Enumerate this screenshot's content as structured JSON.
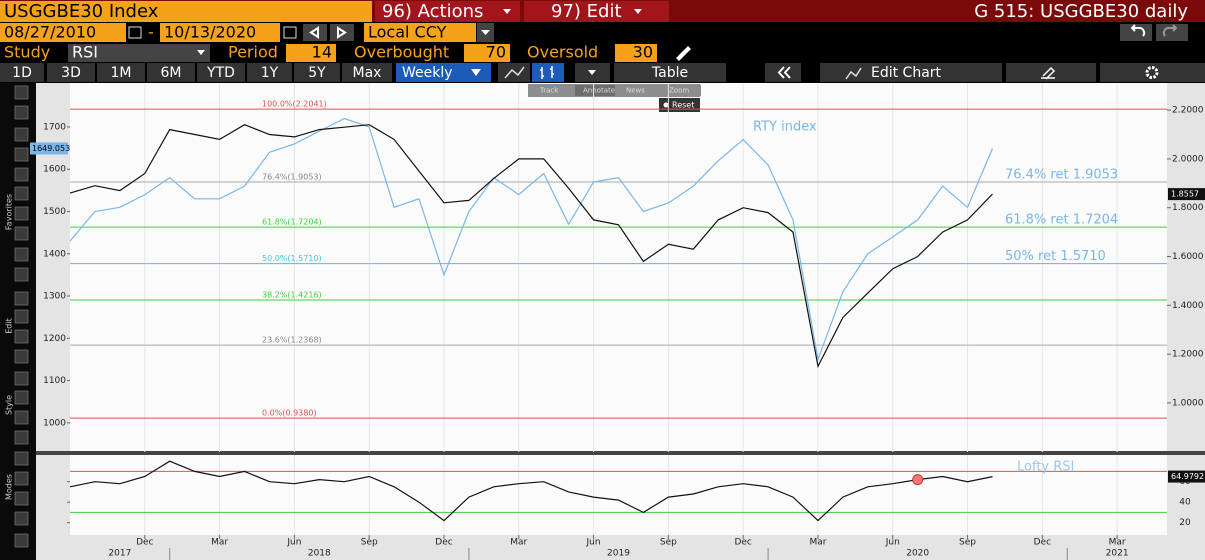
{
  "header": {
    "ticker": "USGGBE30 Index",
    "actions": "96) Actions",
    "edit": "97) Edit",
    "title": "G 515: USGGBE30 daily"
  },
  "range": {
    "start": "08/27/2010",
    "sep": "-",
    "end": "10/13/2020",
    "currency": "Local CCY"
  },
  "study": {
    "label": "Study",
    "name": "RSI",
    "period_label": "Period",
    "period": 14,
    "overbought_label": "Overbought",
    "overbought": 70,
    "oversold_label": "Oversold",
    "oversold": 30
  },
  "periods": [
    "1D",
    "3D",
    "1M",
    "6M",
    "YTD",
    "1Y",
    "5Y",
    "Max"
  ],
  "frequency": "Weekly",
  "table": "Table",
  "edit_chart": "Edit Chart",
  "chart_tools": [
    "Track",
    "Annotate",
    "News",
    "Zoom"
  ],
  "reset": "Reset",
  "sidebar": [
    "Favorites",
    "Edit",
    "Style",
    "Modes"
  ],
  "chart_data": [
    {
      "type": "line",
      "x": [
        "2017-09",
        "2017-10",
        "2017-11",
        "2017-12",
        "2018-01",
        "2018-02",
        "2018-03",
        "2018-04",
        "2018-05",
        "2018-06",
        "2018-07",
        "2018-08",
        "2018-09",
        "2018-10",
        "2018-11",
        "2018-12",
        "2019-01",
        "2019-02",
        "2019-03",
        "2019-04",
        "2019-05",
        "2019-06",
        "2019-07",
        "2019-08",
        "2019-09",
        "2019-10",
        "2019-11",
        "2019-12",
        "2020-01",
        "2020-02",
        "2020-03",
        "2020-04",
        "2020-05",
        "2020-06",
        "2020-07",
        "2020-08",
        "2020-09",
        "2020-10"
      ],
      "xlim": [
        "2017-09",
        "2021-05"
      ],
      "ylim": [
        931,
        1804
      ],
      "yticks": [
        1000,
        1100,
        1200,
        1300,
        1400,
        1500,
        1600,
        1700
      ],
      "y2lim": [
        0.799,
        2.311
      ],
      "y2ticks": [
        {
          "value": 1.0,
          "label": "1.0000"
        },
        {
          "value": 1.2,
          "label": "1.2000"
        },
        {
          "value": 1.4,
          "label": "1.4000"
        },
        {
          "value": 1.6,
          "label": "1.6000"
        },
        {
          "value": 1.8,
          "label": "1.8000"
        },
        {
          "value": 2.0,
          "label": "2.0000"
        },
        {
          "value": 2.2,
          "label": "2.2000"
        }
      ],
      "series": [
        {
          "name": "RTY index",
          "color": "#7ab6ea",
          "axis": "y",
          "values": [
            1430,
            1500,
            1510,
            1540,
            1580,
            1530,
            1530,
            1560,
            1640,
            1660,
            1690,
            1720,
            1700,
            1510,
            1530,
            1350,
            1500,
            1580,
            1540,
            1590,
            1470,
            1570,
            1580,
            1500,
            1520,
            1560,
            1620,
            1670,
            1610,
            1480,
            1150,
            1310,
            1400,
            1440,
            1480,
            1560,
            1510,
            1649.053
          ]
        },
        {
          "color": "#111111",
          "axis": "y2",
          "values": [
            1.86,
            1.89,
            1.87,
            1.94,
            2.12,
            2.1,
            2.08,
            2.14,
            2.1,
            2.09,
            2.12,
            2.13,
            2.14,
            2.08,
            1.95,
            1.82,
            1.83,
            1.92,
            2.0,
            2.0,
            1.88,
            1.75,
            1.73,
            1.58,
            1.65,
            1.63,
            1.75,
            1.8,
            1.78,
            1.7,
            1.15,
            1.35,
            1.45,
            1.55,
            1.6,
            1.7,
            1.75,
            1.8557
          ]
        }
      ],
      "fib_levels": [
        {
          "value": 2.2041,
          "label": "100.0%(2.2041)",
          "color": "#e05050"
        },
        {
          "value": 1.9053,
          "label": "76.4%(1.9053)",
          "color": "#aaaaaa"
        },
        {
          "value": 1.7204,
          "label": "61.8%(1.7204)",
          "color": "#3cd13c"
        },
        {
          "value": 1.571,
          "label": "50.0%(1.5710)",
          "color": "#3cc8e0"
        },
        {
          "value": 1.4216,
          "label": "38.2%(1.4216)",
          "color": "#3cd13c"
        },
        {
          "value": 1.2368,
          "label": "23.6%(1.2368)",
          "color": "#aaaaaa"
        },
        {
          "value": 0.938,
          "label": "0.0%(0.9380)",
          "color": "#e05050"
        }
      ],
      "annotations": [
        {
          "text": "76.4% ret 1.9053",
          "value": 1.9053
        },
        {
          "text": "61.8% ret 1.7204",
          "value": 1.7204
        },
        {
          "text": "50% ret 1.5710",
          "value": 1.571
        }
      ]
    },
    {
      "type": "line",
      "x": [
        "2017-09",
        "2017-10",
        "2017-11",
        "2017-12",
        "2018-01",
        "2018-02",
        "2018-03",
        "2018-04",
        "2018-05",
        "2018-06",
        "2018-07",
        "2018-08",
        "2018-09",
        "2018-10",
        "2018-11",
        "2018-12",
        "2019-01",
        "2019-02",
        "2019-03",
        "2019-04",
        "2019-05",
        "2019-06",
        "2019-07",
        "2019-08",
        "2019-09",
        "2019-10",
        "2019-11",
        "2019-12",
        "2020-01",
        "2020-02",
        "2020-03",
        "2020-04",
        "2020-05",
        "2020-06",
        "2020-07",
        "2020-08",
        "2020-09",
        "2020-10"
      ],
      "xlim": [
        "2017-09",
        "2021-05"
      ],
      "ylim": [
        8,
        86
      ],
      "yticks": [
        20,
        40,
        60
      ],
      "series": [
        {
          "name": "Lofty RSI",
          "color": "#111111",
          "values": [
            55,
            60,
            58,
            65,
            80,
            70,
            65,
            70,
            60,
            58,
            62,
            60,
            65,
            55,
            40,
            22,
            45,
            55,
            58,
            60,
            50,
            45,
            42,
            30,
            45,
            48,
            55,
            58,
            55,
            45,
            22,
            45,
            55,
            58,
            62,
            65,
            60,
            64.9792
          ]
        }
      ],
      "xticks": [
        {
          "value": "2017-12",
          "label": "Dec"
        },
        {
          "value": "2018-03",
          "label": "Mar"
        },
        {
          "value": "2018-06",
          "label": "Jun"
        },
        {
          "value": "2018-09",
          "label": "Sep"
        },
        {
          "value": "2018-12",
          "label": "Dec"
        },
        {
          "value": "2019-03",
          "label": "Mar"
        },
        {
          "value": "2019-06",
          "label": "Jun"
        },
        {
          "value": "2019-09",
          "label": "Sep"
        },
        {
          "value": "2019-12",
          "label": "Dec"
        },
        {
          "value": "2020-03",
          "label": "Mar"
        },
        {
          "value": "2020-06",
          "label": "Jun"
        },
        {
          "value": "2020-09",
          "label": "Sep"
        },
        {
          "value": "2020-12",
          "label": "Dec"
        },
        {
          "value": "2021-03",
          "label": "Mar"
        }
      ],
      "year_ticks": [
        2017,
        2018,
        2019,
        2020,
        2021
      ]
    }
  ]
}
